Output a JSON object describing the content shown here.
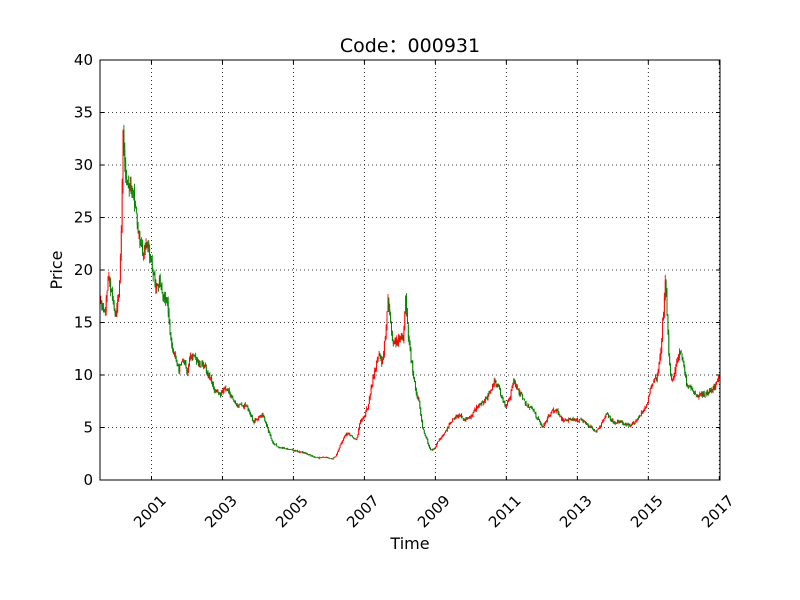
{
  "chart_data": {
    "type": "candlestick",
    "title": "Code：000931",
    "xlabel": "Time",
    "ylabel": "Price",
    "xlim": [
      1999.55,
      2017.02
    ],
    "ylim": [
      0,
      40
    ],
    "x_ticks": [
      2001,
      2003,
      2005,
      2007,
      2009,
      2011,
      2013,
      2015,
      2017
    ],
    "y_ticks": [
      0,
      5,
      10,
      15,
      20,
      25,
      30,
      35,
      40
    ],
    "grid": true,
    "grid_style": "dotted",
    "up_color": "#ff0000",
    "down_color": "#008000",
    "price_path": [
      [
        1999.55,
        17.0
      ],
      [
        1999.7,
        16.0
      ],
      [
        1999.78,
        19.5
      ],
      [
        1999.88,
        17.5
      ],
      [
        1999.95,
        16.0
      ],
      [
        2000.0,
        15.5
      ],
      [
        2000.08,
        18.0
      ],
      [
        2000.12,
        20.5
      ],
      [
        2000.16,
        25.0
      ],
      [
        2000.2,
        34.0
      ],
      [
        2000.24,
        31.0
      ],
      [
        2000.28,
        29.0
      ],
      [
        2000.34,
        27.5
      ],
      [
        2000.4,
        28.5
      ],
      [
        2000.48,
        27.0
      ],
      [
        2000.58,
        25.5
      ],
      [
        2000.66,
        23.0
      ],
      [
        2000.76,
        21.8
      ],
      [
        2000.86,
        22.5
      ],
      [
        2000.96,
        21.5
      ],
      [
        2001.1,
        18.5
      ],
      [
        2001.22,
        18.8
      ],
      [
        2001.34,
        17.5
      ],
      [
        2001.46,
        16.5
      ],
      [
        2001.54,
        13.5
      ],
      [
        2001.64,
        12.0
      ],
      [
        2001.76,
        10.5
      ],
      [
        2001.9,
        11.5
      ],
      [
        2002.0,
        10.0
      ],
      [
        2002.1,
        11.8
      ],
      [
        2002.24,
        11.5
      ],
      [
        2002.36,
        11.0
      ],
      [
        2002.5,
        10.8
      ],
      [
        2002.64,
        9.8
      ],
      [
        2002.8,
        8.5
      ],
      [
        2002.94,
        8.0
      ],
      [
        2003.08,
        8.8
      ],
      [
        2003.24,
        8.0
      ],
      [
        2003.4,
        7.0
      ],
      [
        2003.56,
        7.2
      ],
      [
        2003.72,
        6.8
      ],
      [
        2003.86,
        5.5
      ],
      [
        2004.0,
        5.8
      ],
      [
        2004.14,
        6.2
      ],
      [
        2004.26,
        5.0
      ],
      [
        2004.4,
        3.6
      ],
      [
        2004.56,
        3.2
      ],
      [
        2004.74,
        3.0
      ],
      [
        2004.9,
        2.9
      ],
      [
        2005.1,
        2.7
      ],
      [
        2005.3,
        2.6
      ],
      [
        2005.5,
        2.3
      ],
      [
        2005.7,
        2.1
      ],
      [
        2005.9,
        2.2
      ],
      [
        2006.08,
        2.0
      ],
      [
        2006.2,
        2.3
      ],
      [
        2006.3,
        3.2
      ],
      [
        2006.44,
        4.2
      ],
      [
        2006.56,
        4.5
      ],
      [
        2006.68,
        4.0
      ],
      [
        2006.78,
        3.8
      ],
      [
        2006.88,
        5.5
      ],
      [
        2006.98,
        6.0
      ],
      [
        2007.1,
        7.0
      ],
      [
        2007.2,
        9.0
      ],
      [
        2007.3,
        10.5
      ],
      [
        2007.4,
        12.0
      ],
      [
        2007.5,
        11.0
      ],
      [
        2007.6,
        14.0
      ],
      [
        2007.66,
        17.5
      ],
      [
        2007.72,
        15.5
      ],
      [
        2007.8,
        13.0
      ],
      [
        2008.1,
        13.5
      ],
      [
        2008.16,
        17.5
      ],
      [
        2008.24,
        13.5
      ],
      [
        2008.34,
        11.0
      ],
      [
        2008.44,
        8.5
      ],
      [
        2008.54,
        7.5
      ],
      [
        2008.64,
        5.0
      ],
      [
        2008.74,
        4.0
      ],
      [
        2008.84,
        3.0
      ],
      [
        2008.92,
        2.8
      ],
      [
        2009.02,
        3.3
      ],
      [
        2009.14,
        4.0
      ],
      [
        2009.26,
        4.5
      ],
      [
        2009.4,
        5.3
      ],
      [
        2009.54,
        6.0
      ],
      [
        2009.68,
        6.2
      ],
      [
        2009.82,
        5.8
      ],
      [
        2010.0,
        6.0
      ],
      [
        2010.14,
        6.8
      ],
      [
        2010.3,
        7.3
      ],
      [
        2010.44,
        7.8
      ],
      [
        2010.56,
        8.5
      ],
      [
        2010.66,
        9.5
      ],
      [
        2010.78,
        8.8
      ],
      [
        2010.9,
        7.5
      ],
      [
        2011.0,
        7.0
      ],
      [
        2011.1,
        7.8
      ],
      [
        2011.2,
        9.5
      ],
      [
        2011.3,
        8.6
      ],
      [
        2011.44,
        8.0
      ],
      [
        2011.56,
        7.2
      ],
      [
        2011.68,
        6.8
      ],
      [
        2011.8,
        6.5
      ],
      [
        2011.92,
        5.5
      ],
      [
        2012.04,
        5.0
      ],
      [
        2012.16,
        6.0
      ],
      [
        2012.3,
        6.6
      ],
      [
        2012.44,
        6.5
      ],
      [
        2012.56,
        5.8
      ],
      [
        2012.7,
        5.6
      ],
      [
        2012.84,
        5.9
      ],
      [
        2012.96,
        5.6
      ],
      [
        2013.1,
        5.9
      ],
      [
        2013.24,
        5.3
      ],
      [
        2013.4,
        5.0
      ],
      [
        2013.52,
        4.6
      ],
      [
        2013.62,
        5.0
      ],
      [
        2013.74,
        5.8
      ],
      [
        2013.84,
        6.3
      ],
      [
        2013.94,
        5.7
      ],
      [
        2014.06,
        5.5
      ],
      [
        2014.2,
        5.6
      ],
      [
        2014.36,
        5.3
      ],
      [
        2014.5,
        5.2
      ],
      [
        2014.66,
        5.6
      ],
      [
        2014.8,
        6.3
      ],
      [
        2014.94,
        7.0
      ],
      [
        2015.04,
        8.5
      ],
      [
        2015.14,
        9.2
      ],
      [
        2015.24,
        9.8
      ],
      [
        2015.34,
        12.0
      ],
      [
        2015.42,
        15.5
      ],
      [
        2015.48,
        19.0
      ],
      [
        2015.52,
        16.5
      ],
      [
        2015.58,
        12.0
      ],
      [
        2015.64,
        9.5
      ],
      [
        2015.72,
        9.8
      ],
      [
        2015.82,
        11.5
      ],
      [
        2015.92,
        12.5
      ],
      [
        2016.0,
        11.0
      ],
      [
        2016.08,
        9.0
      ],
      [
        2016.16,
        9.0
      ],
      [
        2016.26,
        8.3
      ],
      [
        2016.38,
        8.0
      ],
      [
        2016.52,
        8.2
      ],
      [
        2016.66,
        8.3
      ],
      [
        2016.78,
        8.6
      ],
      [
        2016.9,
        9.0
      ],
      [
        2017.0,
        9.8
      ]
    ]
  }
}
